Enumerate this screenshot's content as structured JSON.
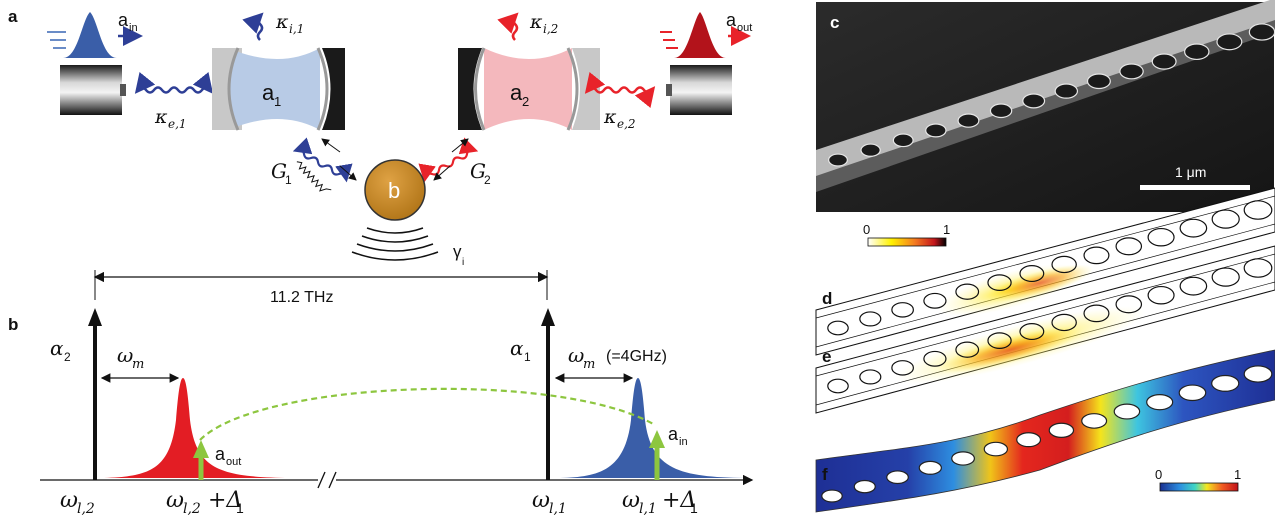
{
  "panels": {
    "a": "a",
    "b": "b",
    "c": "c",
    "d": "d",
    "e": "e",
    "f": "f"
  },
  "panel_a": {
    "a_in": "a",
    "a_in_sub": "in",
    "a_out": "a",
    "a_out_sub": "out",
    "kappa_i1": "κ",
    "kappa_i1_sub": "i,1",
    "kappa_i2": "κ",
    "kappa_i2_sub": "i,2",
    "kappa_e1": "κ",
    "kappa_e1_sub": "e,1",
    "kappa_e2": "κ",
    "kappa_e2_sub": "e,2",
    "cavity1": "a",
    "cavity1_sub": "1",
    "cavity2": "a",
    "cavity2_sub": "2",
    "mechanical": "b",
    "G1": "G",
    "G1_sub": "1",
    "G2": "G",
    "G2_sub": "2",
    "gamma_i": "γ",
    "gamma_i_sub": "i"
  },
  "panel_b": {
    "separation": "11.2 THz",
    "alpha2": "α",
    "alpha2_sub": "2",
    "alpha1": "α",
    "alpha1_sub": "1",
    "omega_m_left": "ω",
    "omega_m_left_sub": "m",
    "omega_m_right": "ω",
    "omega_m_right_sub": "m",
    "omega_m_value": "(=4GHz)",
    "a_out": "a",
    "a_out_sub": "out",
    "a_in": "a",
    "a_in_sub": "in",
    "x_labels": [
      {
        "main": "ω",
        "sub": "l,2",
        "suffix": ""
      },
      {
        "main": "ω",
        "sub": "l,2",
        "suffix": "+Δ",
        "suffix_sub": "1"
      },
      {
        "main": "ω",
        "sub": "l,1",
        "suffix": ""
      },
      {
        "main": "ω",
        "sub": "l,1",
        "suffix": "+Δ",
        "suffix_sub": "1"
      }
    ]
  },
  "panel_c": {
    "scalebar": "1 μm"
  },
  "colorbar_top": {
    "min": "0",
    "max": "1"
  },
  "colorbar_bottom": {
    "min": "0",
    "max": "1"
  },
  "colors": {
    "blue": "#2e3f96",
    "red": "#e8232a",
    "green": "#8dc63f",
    "orange": "#c8841a",
    "cavity_blue": "#b8cbe6",
    "cavity_pink": "#f4b8bd",
    "peak_blue": "#3a5ea8",
    "peak_red": "#e31d24"
  }
}
